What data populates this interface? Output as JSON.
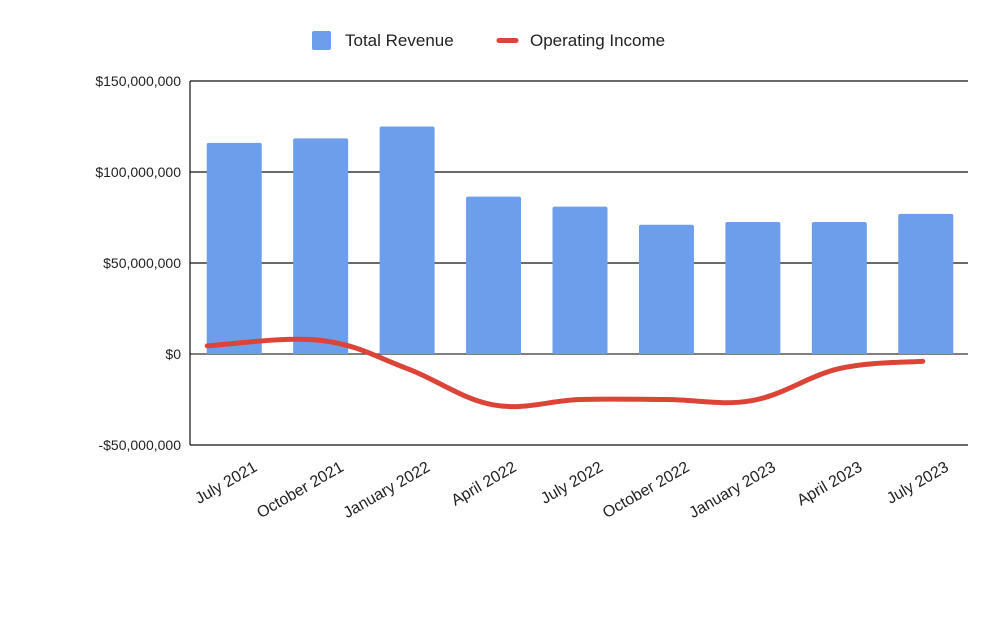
{
  "chart_data": {
    "type": "bar",
    "categories": [
      "July 2021",
      "October 2021",
      "January 2022",
      "April 2022",
      "July 2022",
      "October 2022",
      "January 2023",
      "April 2023",
      "July 2023"
    ],
    "series": [
      {
        "name": "Total Revenue",
        "kind": "bar",
        "color": "#6d9eeb",
        "values": [
          116000000,
          118500000,
          125000000,
          86500000,
          81000000,
          71000000,
          72500000,
          72500000,
          77000000
        ]
      },
      {
        "name": "Operating Income",
        "kind": "line",
        "color": "#dc4437",
        "smooth": true,
        "values": [
          4500000,
          7500000,
          -8000000,
          -28000000,
          -25000000,
          -25000000,
          -25500000,
          -8000000,
          -4000000
        ]
      }
    ],
    "ylim": [
      -50000000,
      150000000
    ],
    "yticks": [
      -50000000,
      0,
      50000000,
      100000000,
      150000000
    ],
    "ytick_labels": [
      "-$50,000,000",
      "$0",
      "$50,000,000",
      "$100,000,000",
      "$150,000,000"
    ],
    "grid": true,
    "legend_position": "top-center",
    "title": "",
    "xlabel": "",
    "ylabel": ""
  }
}
